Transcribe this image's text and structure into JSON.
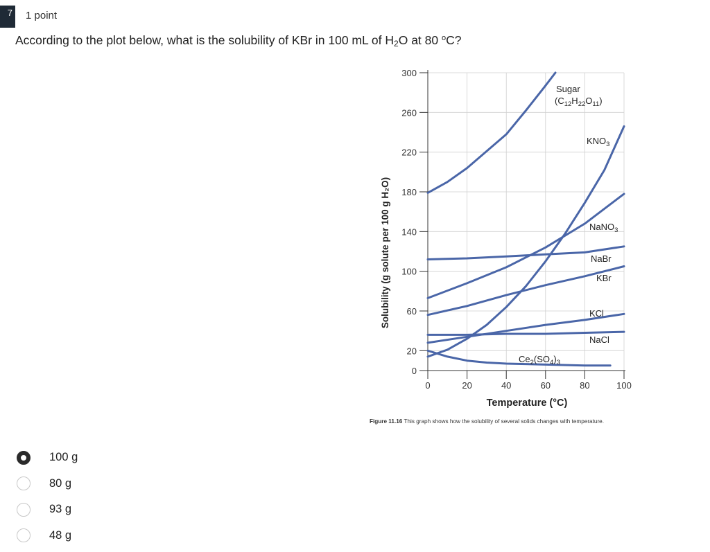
{
  "question": {
    "number": "7",
    "points": "1 point",
    "text_parts": [
      "According to the plot below, what is the solubility of KBr in 100 mL of H",
      "2",
      "O at 80 ",
      "o",
      "C?"
    ]
  },
  "figure": {
    "caption_bold": "Figure 11.16",
    "caption_text": " This graph shows how the solubility of several solids changes with temperature."
  },
  "options": [
    {
      "label": "100 g",
      "selected": true
    },
    {
      "label": "80 g",
      "selected": false
    },
    {
      "label": "93 g",
      "selected": false
    },
    {
      "label": "48 g",
      "selected": false
    }
  ],
  "chart_data": {
    "type": "line",
    "xlabel": "Temperature (°C)",
    "ylabel": "Solubility (g solute per 100 g H₂O)",
    "xlim": [
      0,
      100
    ],
    "ylim": [
      0,
      300
    ],
    "xticks": [
      0,
      20,
      40,
      60,
      80,
      100
    ],
    "yticks": [
      0,
      20,
      60,
      100,
      140,
      180,
      220,
      260,
      300
    ],
    "grid": true,
    "color": "#4a66a8",
    "series": [
      {
        "name": "Sugar (C12H22O11)",
        "label_main": "Sugar",
        "label_formula": "(C12H22O11)",
        "x": [
          0,
          10,
          20,
          30,
          40,
          50,
          60,
          65
        ],
        "y": [
          179,
          190,
          204,
          221,
          238,
          262,
          287,
          300
        ]
      },
      {
        "name": "KNO3",
        "label_main": "KNO3",
        "x": [
          0,
          10,
          20,
          30,
          40,
          50,
          60,
          70,
          80,
          90,
          100
        ],
        "y": [
          14,
          21,
          32,
          46,
          64,
          85,
          110,
          138,
          169,
          202,
          246
        ]
      },
      {
        "name": "NaNO3",
        "label_main": "NaNO3",
        "x": [
          0,
          20,
          40,
          60,
          80,
          100
        ],
        "y": [
          73,
          88,
          104,
          124,
          148,
          178
        ]
      },
      {
        "name": "NaBr",
        "label_main": "NaBr",
        "x": [
          0,
          20,
          40,
          60,
          80,
          100
        ],
        "y": [
          112,
          113,
          115,
          117,
          119,
          125
        ]
      },
      {
        "name": "KBr",
        "label_main": "KBr",
        "x": [
          0,
          20,
          40,
          60,
          80,
          100
        ],
        "y": [
          56,
          65,
          76,
          86,
          95,
          105
        ]
      },
      {
        "name": "KCl",
        "label_main": "KCl",
        "x": [
          0,
          20,
          40,
          60,
          80,
          100
        ],
        "y": [
          28,
          34,
          40,
          46,
          51,
          57
        ]
      },
      {
        "name": "NaCl",
        "label_main": "NaCl",
        "x": [
          0,
          20,
          40,
          60,
          80,
          100
        ],
        "y": [
          36,
          36,
          37,
          37,
          38,
          39
        ]
      },
      {
        "name": "Ce2(SO4)3",
        "label_main": "Ce2(SO4)3",
        "x": [
          0,
          10,
          20,
          30,
          40,
          60,
          80,
          93
        ],
        "y": [
          20,
          14,
          10,
          8,
          7,
          6,
          5,
          5
        ]
      }
    ]
  }
}
